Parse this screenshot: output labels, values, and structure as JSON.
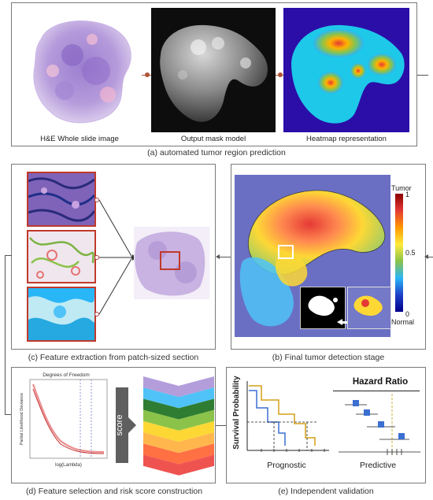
{
  "panel_a": {
    "label_wsi": "H&E Whole slide image",
    "label_mask": "Output mask model",
    "label_heatmap": "Heatmap representation",
    "caption": "(a)  automated tumor region prediction"
  },
  "panel_b": {
    "caption": "(b) Final tumor detection stage",
    "colorbar_top": "Tumor",
    "colorbar_max": "1",
    "colorbar_mid": "0.5",
    "colorbar_min": "0",
    "colorbar_bottom": "Normal"
  },
  "panel_c": {
    "caption": "(c) Feature extraction from patch-sized section"
  },
  "panel_d": {
    "caption": "(d) Feature selection and risk score construction",
    "plot_title": "Degrees of Freedom",
    "plot_ylabel": "Partial Likelihood Deviance",
    "plot_xlabel": "log(Lambda)",
    "score_label": "score",
    "funnel_colors": [
      "#b39ddb",
      "#4fc3f7",
      "#2e7d32",
      "#8bc34a",
      "#fdd835",
      "#ffb74d",
      "#ff7043",
      "#ef5350"
    ]
  },
  "panel_e": {
    "caption": "(e)  Independent validation",
    "survival_ylabel": "Survival Probability",
    "prognostic_label": "Prognostic",
    "hazard_title": "Hazard Ratio",
    "predictive_label": "Predictive"
  }
}
